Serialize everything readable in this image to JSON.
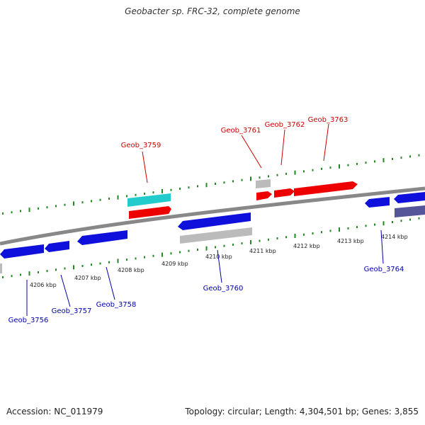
{
  "title": "Geobacter sp. FRC-32, complete genome",
  "footer": {
    "accession": "Accession: NC_011979",
    "summary": "Topology: circular; Length: 4,304,501 bp; Genes: 3,855"
  },
  "colors": {
    "forward_gene": "#ee0000",
    "reverse_gene": "#1010dd",
    "rna_gene": "#22cccc",
    "pseudo_gene": "#bbbbbb",
    "reverse_dark": "#555599",
    "backbone": "#888888",
    "tick": "#228822",
    "forward_label": "#cc0000",
    "reverse_label": "#0000aa",
    "kbp_label": "#222222"
  },
  "kbp_labels": [
    "4206 kbp",
    "4207 kbp",
    "4208 kbp",
    "4209 kbp",
    "4210 kbp",
    "4211 kbp",
    "4212 kbp",
    "4213 kbp",
    "4214 kbp"
  ],
  "forward_genes": [
    "Geob_3759",
    "Geob_3761",
    "Geob_3762",
    "Geob_3763"
  ],
  "reverse_genes": [
    "Geob_3756",
    "Geob_3757",
    "Geob_3758",
    "Geob_3760",
    "Geob_3764"
  ]
}
